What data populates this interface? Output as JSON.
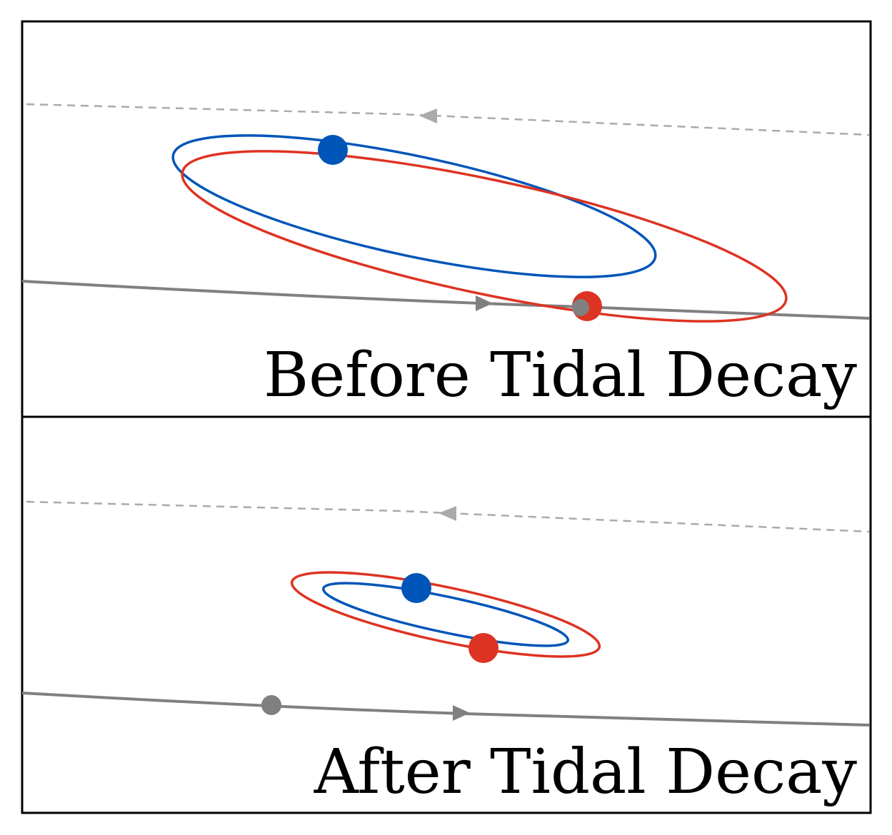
{
  "colors": {
    "blue": "#0055B8",
    "red": "#DD3322",
    "grey": "#808080",
    "dashed_grey": "#AAAAAA",
    "frame": "#000000"
  },
  "panels": [
    {
      "title": "Before Tidal Decay",
      "separation_state": "wide"
    },
    {
      "title": "After Tidal Decay",
      "separation_state": "tight"
    }
  ]
}
